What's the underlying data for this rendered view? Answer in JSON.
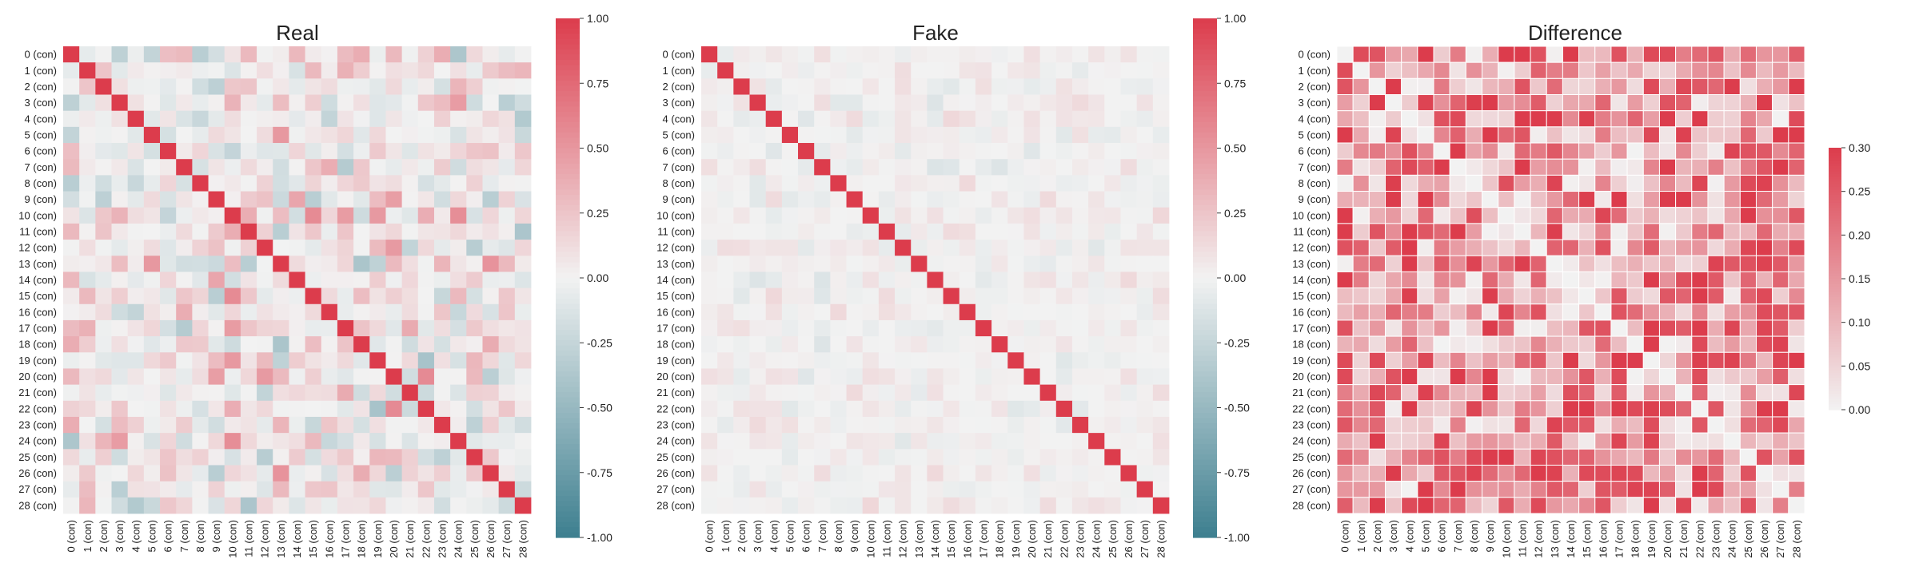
{
  "chart_data": [
    {
      "type": "heatmap",
      "title": "Real",
      "labels": [
        "0 (con)",
        "1 (con)",
        "2 (con)",
        "3 (con)",
        "4 (con)",
        "5 (con)",
        "6 (con)",
        "7 (con)",
        "8 (con)",
        "9 (con)",
        "10 (con)",
        "11 (con)",
        "12 (con)",
        "13 (con)",
        "14 (con)",
        "15 (con)",
        "16 (con)",
        "17 (con)",
        "18 (con)",
        "19 (con)",
        "20 (con)",
        "21 (con)",
        "22 (con)",
        "23 (con)",
        "24 (con)",
        "25 (con)",
        "26 (con)",
        "27 (con)",
        "28 (con)"
      ],
      "colorbar": {
        "min": -1.0,
        "max": 1.0,
        "ticks": [
          "1.00",
          "0.75",
          "0.50",
          "0.25",
          "0.00",
          "-0.25",
          "-0.50",
          "-0.75",
          "-1.00"
        ]
      },
      "colors": {
        "low": "#3d7f8f",
        "mid": "#f2f2f2",
        "high": "#dc3c4c"
      },
      "seed": 11,
      "offdiag_scale": 0.55,
      "diagonal": 1.0
    },
    {
      "type": "heatmap",
      "title": "Fake",
      "labels": [
        "0 (con)",
        "1 (con)",
        "2 (con)",
        "3 (con)",
        "4 (con)",
        "5 (con)",
        "6 (con)",
        "7 (con)",
        "8 (con)",
        "9 (con)",
        "10 (con)",
        "11 (con)",
        "12 (con)",
        "13 (con)",
        "14 (con)",
        "15 (con)",
        "16 (con)",
        "17 (con)",
        "18 (con)",
        "19 (con)",
        "20 (con)",
        "21 (con)",
        "22 (con)",
        "23 (con)",
        "24 (con)",
        "25 (con)",
        "26 (con)",
        "27 (con)",
        "28 (con)"
      ],
      "colorbar": {
        "min": -1.0,
        "max": 1.0,
        "ticks": [
          "1.00",
          "0.75",
          "0.50",
          "0.25",
          "0.00",
          "-0.25",
          "-0.50",
          "-0.75",
          "-1.00"
        ]
      },
      "colors": {
        "low": "#3d7f8f",
        "mid": "#f2f2f2",
        "high": "#dc3c4c"
      },
      "seed": 29,
      "offdiag_scale": 0.15,
      "diagonal": 1.0
    },
    {
      "type": "heatmap",
      "title": "Difference",
      "labels": [
        "0 (con)",
        "1 (con)",
        "2 (con)",
        "3 (con)",
        "4 (con)",
        "5 (con)",
        "6 (con)",
        "7 (con)",
        "8 (con)",
        "9 (con)",
        "10 (con)",
        "11 (con)",
        "12 (con)",
        "13 (con)",
        "14 (con)",
        "15 (con)",
        "16 (con)",
        "17 (con)",
        "18 (con)",
        "19 (con)",
        "20 (con)",
        "21 (con)",
        "22 (con)",
        "23 (con)",
        "24 (con)",
        "25 (con)",
        "26 (con)",
        "27 (con)",
        "28 (con)"
      ],
      "colorbar": {
        "min": 0.0,
        "max": 0.3,
        "ticks": [
          "0.30",
          "0.25",
          "0.20",
          "0.15",
          "0.10",
          "0.05",
          "0.00"
        ]
      },
      "colors": {
        "low": "#f2f2f2",
        "high": "#dc3c4c"
      },
      "seed": 47,
      "offdiag_scale": 0.3,
      "diagonal": 0.0
    }
  ]
}
